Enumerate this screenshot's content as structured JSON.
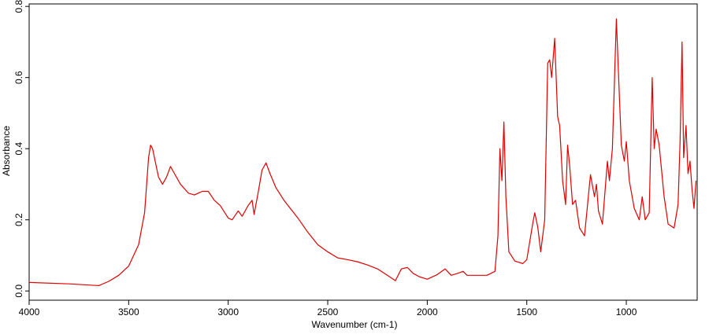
{
  "chart_data": {
    "type": "line",
    "x_label": "Wavenumber (cm-1)",
    "y_label": "Absorbance",
    "color": "#e00000",
    "x": [
      4000,
      3800,
      3650,
      3600,
      3550,
      3500,
      3450,
      3420,
      3400,
      3390,
      3380,
      3350,
      3330,
      3310,
      3290,
      3270,
      3240,
      3200,
      3170,
      3130,
      3100,
      3070,
      3040,
      3000,
      2980,
      2950,
      2930,
      2900,
      2880,
      2870,
      2850,
      2830,
      2810,
      2790,
      2760,
      2720,
      2650,
      2600,
      2550,
      2500,
      2450,
      2400,
      2350,
      2300,
      2250,
      2200,
      2160,
      2130,
      2100,
      2070,
      2040,
      2000,
      1950,
      1910,
      1880,
      1850,
      1820,
      1800,
      1700,
      1660,
      1645,
      1635,
      1625,
      1615,
      1605,
      1590,
      1560,
      1520,
      1500,
      1470,
      1460,
      1445,
      1430,
      1410,
      1395,
      1385,
      1375,
      1360,
      1345,
      1335,
      1320,
      1305,
      1295,
      1285,
      1270,
      1255,
      1235,
      1210,
      1180,
      1160,
      1150,
      1140,
      1120,
      1095,
      1085,
      1070,
      1050,
      1040,
      1025,
      1010,
      1000,
      985,
      960,
      935,
      920,
      905,
      885,
      870,
      860,
      850,
      835,
      810,
      790,
      760,
      740,
      730,
      720,
      712,
      700,
      690,
      680,
      670,
      660,
      650
    ],
    "values": [
      0.024,
      0.02,
      0.015,
      0.027,
      0.044,
      0.07,
      0.13,
      0.22,
      0.375,
      0.41,
      0.4,
      0.32,
      0.3,
      0.32,
      0.35,
      0.33,
      0.3,
      0.275,
      0.27,
      0.28,
      0.28,
      0.255,
      0.24,
      0.205,
      0.2,
      0.225,
      0.21,
      0.24,
      0.255,
      0.215,
      0.275,
      0.34,
      0.36,
      0.33,
      0.29,
      0.255,
      0.205,
      0.165,
      0.13,
      0.11,
      0.093,
      0.088,
      0.082,
      0.073,
      0.062,
      0.044,
      0.029,
      0.062,
      0.066,
      0.049,
      0.04,
      0.033,
      0.046,
      0.062,
      0.044,
      0.049,
      0.055,
      0.044,
      0.044,
      0.055,
      0.155,
      0.4,
      0.31,
      0.475,
      0.265,
      0.11,
      0.084,
      0.077,
      0.088,
      0.19,
      0.22,
      0.18,
      0.11,
      0.2,
      0.64,
      0.65,
      0.6,
      0.71,
      0.49,
      0.465,
      0.31,
      0.243,
      0.41,
      0.355,
      0.243,
      0.255,
      0.177,
      0.155,
      0.327,
      0.265,
      0.3,
      0.225,
      0.188,
      0.365,
      0.31,
      0.4,
      0.765,
      0.62,
      0.41,
      0.365,
      0.42,
      0.31,
      0.232,
      0.2,
      0.265,
      0.2,
      0.22,
      0.6,
      0.4,
      0.455,
      0.41,
      0.265,
      0.188,
      0.177,
      0.243,
      0.42,
      0.7,
      0.375,
      0.465,
      0.33,
      0.365,
      0.287,
      0.232,
      0.31
    ],
    "xlim": [
      4000,
      644
    ],
    "xticks": [
      4000,
      3500,
      3000,
      2500,
      2000,
      1500,
      1000
    ],
    "ylim": [
      -0.026,
      0.807
    ],
    "yticks": [
      {
        "value": 0,
        "label": "0.0"
      },
      0.2,
      0.4,
      0.6,
      0.8
    ],
    "grid": false
  }
}
